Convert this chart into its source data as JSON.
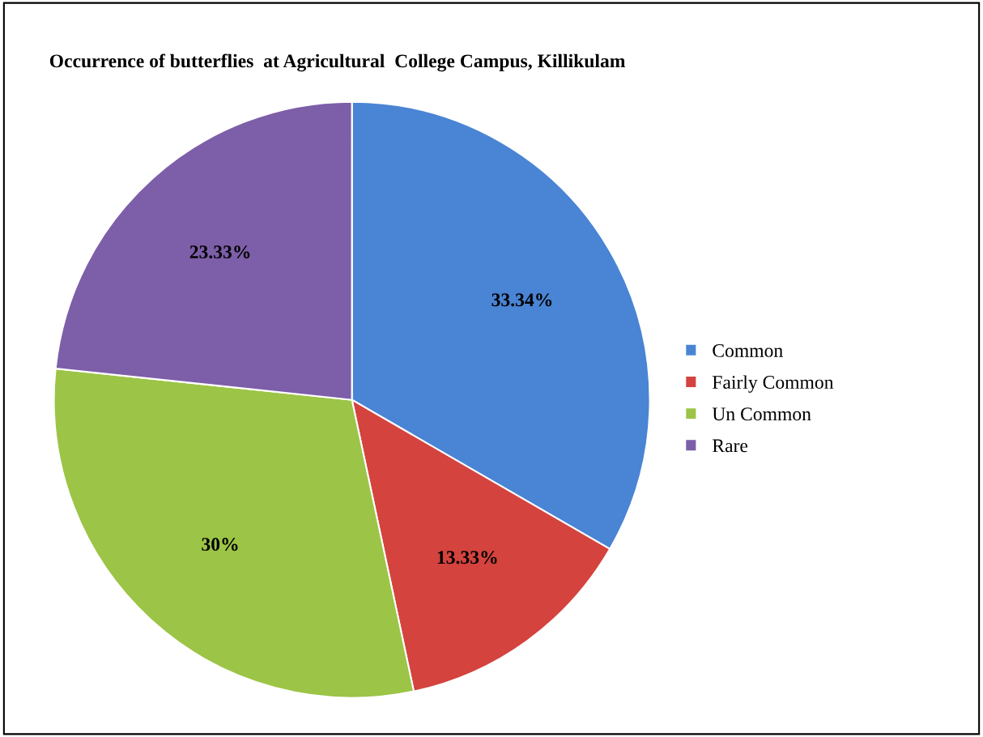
{
  "chart_data": {
    "type": "pie",
    "title": "Occurrence of butterflies  at Agricultural  College Campus, Killikulam",
    "categories": [
      "Common",
      "Fairly Common",
      "Un Common",
      "Rare"
    ],
    "values": [
      33.34,
      13.33,
      30,
      23.33
    ],
    "colors": [
      "#4a84d4",
      "#d4433e",
      "#9cc446",
      "#7d5ea8"
    ],
    "value_labels": [
      "33.34%",
      "13.33%",
      "30%",
      "23.33%"
    ],
    "legend": "right"
  }
}
